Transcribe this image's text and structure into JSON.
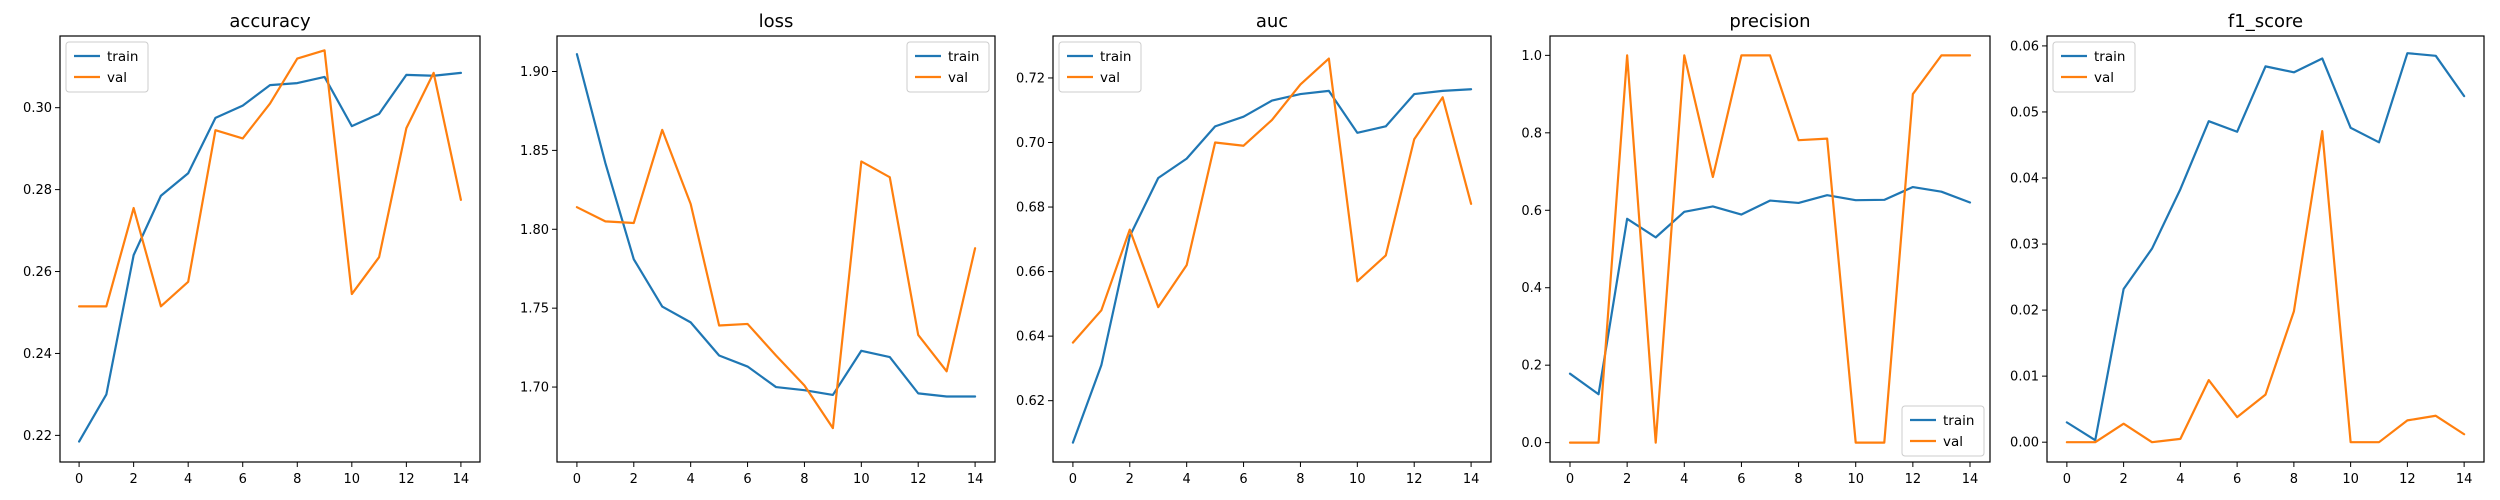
{
  "colors": {
    "train": "#1f77b4",
    "val": "#ff7f0e"
  },
  "chart_data": [
    {
      "type": "line",
      "title": "accuracy",
      "x": [
        0,
        1,
        2,
        3,
        4,
        5,
        6,
        7,
        8,
        9,
        10,
        11,
        12,
        13,
        14
      ],
      "xticks": [
        0,
        2,
        4,
        6,
        8,
        10,
        12,
        14
      ],
      "ylim": [
        0.2135,
        0.3175
      ],
      "yticks": [
        0.22,
        0.24,
        0.26,
        0.28,
        0.3
      ],
      "ytick_labels": [
        "0.22",
        "0.24",
        "0.26",
        "0.28",
        "0.30"
      ],
      "legend": "upper-left",
      "series": [
        {
          "name": "train",
          "values": [
            0.2185,
            0.23,
            0.264,
            0.2785,
            0.284,
            0.2975,
            0.3005,
            0.3055,
            0.306,
            0.3075,
            0.2955,
            0.2985,
            0.308,
            0.3078,
            0.3085
          ]
        },
        {
          "name": "val",
          "values": [
            0.2515,
            0.2515,
            0.2755,
            0.2515,
            0.2575,
            0.2945,
            0.2925,
            0.301,
            0.312,
            0.314,
            0.2545,
            0.2635,
            0.295,
            0.3085,
            0.2775
          ]
        }
      ]
    },
    {
      "type": "line",
      "title": "loss",
      "x": [
        0,
        1,
        2,
        3,
        4,
        5,
        6,
        7,
        8,
        9,
        10,
        11,
        12,
        13,
        14
      ],
      "xticks": [
        0,
        2,
        4,
        6,
        8,
        10,
        12,
        14
      ],
      "ylim": [
        1.6525,
        1.9225
      ],
      "yticks": [
        1.7,
        1.75,
        1.8,
        1.85,
        1.9
      ],
      "ytick_labels": [
        "1.70",
        "1.75",
        "1.80",
        "1.85",
        "1.90"
      ],
      "legend": "upper-right",
      "series": [
        {
          "name": "train",
          "values": [
            1.911,
            1.842,
            1.781,
            1.751,
            1.741,
            1.72,
            1.713,
            1.7,
            1.698,
            1.695,
            1.723,
            1.719,
            1.696,
            1.694,
            1.694
          ]
        },
        {
          "name": "val",
          "values": [
            1.814,
            1.805,
            1.804,
            1.863,
            1.816,
            1.739,
            1.74,
            1.72,
            1.701,
            1.674,
            1.843,
            1.833,
            1.733,
            1.71,
            1.788
          ]
        }
      ]
    },
    {
      "type": "line",
      "title": "auc",
      "x": [
        0,
        1,
        2,
        3,
        4,
        5,
        6,
        7,
        8,
        9,
        10,
        11,
        12,
        13,
        14
      ],
      "xticks": [
        0,
        2,
        4,
        6,
        8,
        10,
        12,
        14
      ],
      "ylim": [
        0.601,
        0.733
      ],
      "yticks": [
        0.62,
        0.64,
        0.66,
        0.68,
        0.7,
        0.72
      ],
      "ytick_labels": [
        "0.62",
        "0.64",
        "0.66",
        "0.68",
        "0.70",
        "0.72"
      ],
      "legend": "upper-left",
      "series": [
        {
          "name": "train",
          "values": [
            0.607,
            0.631,
            0.671,
            0.689,
            0.695,
            0.705,
            0.708,
            0.713,
            0.715,
            0.716,
            0.703,
            0.705,
            0.715,
            0.716,
            0.7165
          ]
        },
        {
          "name": "val",
          "values": [
            0.638,
            0.648,
            0.673,
            0.649,
            0.662,
            0.7,
            0.699,
            0.707,
            0.718,
            0.726,
            0.657,
            0.665,
            0.701,
            0.714,
            0.681
          ]
        }
      ]
    },
    {
      "type": "line",
      "title": "precision",
      "x": [
        0,
        1,
        2,
        3,
        4,
        5,
        6,
        7,
        8,
        9,
        10,
        11,
        12,
        13,
        14
      ],
      "xticks": [
        0,
        2,
        4,
        6,
        8,
        10,
        12,
        14
      ],
      "ylim": [
        -0.05,
        1.05
      ],
      "yticks": [
        0.0,
        0.2,
        0.4,
        0.6,
        0.8,
        1.0
      ],
      "ytick_labels": [
        "0.0",
        "0.2",
        "0.4",
        "0.6",
        "0.8",
        "1.0"
      ],
      "legend": "lower-right",
      "series": [
        {
          "name": "train",
          "values": [
            0.178,
            0.125,
            0.578,
            0.53,
            0.596,
            0.61,
            0.589,
            0.625,
            0.619,
            0.639,
            0.626,
            0.627,
            0.66,
            0.648,
            0.62
          ]
        },
        {
          "name": "val",
          "values": [
            0.0,
            0.0,
            1.0,
            0.0,
            1.0,
            0.686,
            1.0,
            1.0,
            0.781,
            0.785,
            0.0,
            0.0,
            0.9,
            1.0,
            1.0
          ]
        }
      ]
    },
    {
      "type": "line",
      "title": "f1_score",
      "x": [
        0,
        1,
        2,
        3,
        4,
        5,
        6,
        7,
        8,
        9,
        10,
        11,
        12,
        13,
        14
      ],
      "xticks": [
        0,
        2,
        4,
        6,
        8,
        10,
        12,
        14
      ],
      "ylim": [
        -0.003,
        0.0615
      ],
      "yticks": [
        0.0,
        0.01,
        0.02,
        0.03,
        0.04,
        0.05,
        0.06
      ],
      "ytick_labels": [
        "0.00",
        "0.01",
        "0.02",
        "0.03",
        "0.04",
        "0.05",
        "0.06"
      ],
      "legend": "upper-left",
      "series": [
        {
          "name": "train",
          "values": [
            0.003,
            0.0003,
            0.0232,
            0.0293,
            0.0383,
            0.0486,
            0.047,
            0.0569,
            0.056,
            0.0581,
            0.0476,
            0.0454,
            0.0589,
            0.0585,
            0.0524
          ]
        },
        {
          "name": "val",
          "values": [
            0.0,
            0.0,
            0.0028,
            0.0,
            0.0005,
            0.0094,
            0.0038,
            0.0072,
            0.0198,
            0.0471,
            0.0,
            0.0,
            0.0033,
            0.004,
            0.0012
          ]
        }
      ]
    }
  ]
}
